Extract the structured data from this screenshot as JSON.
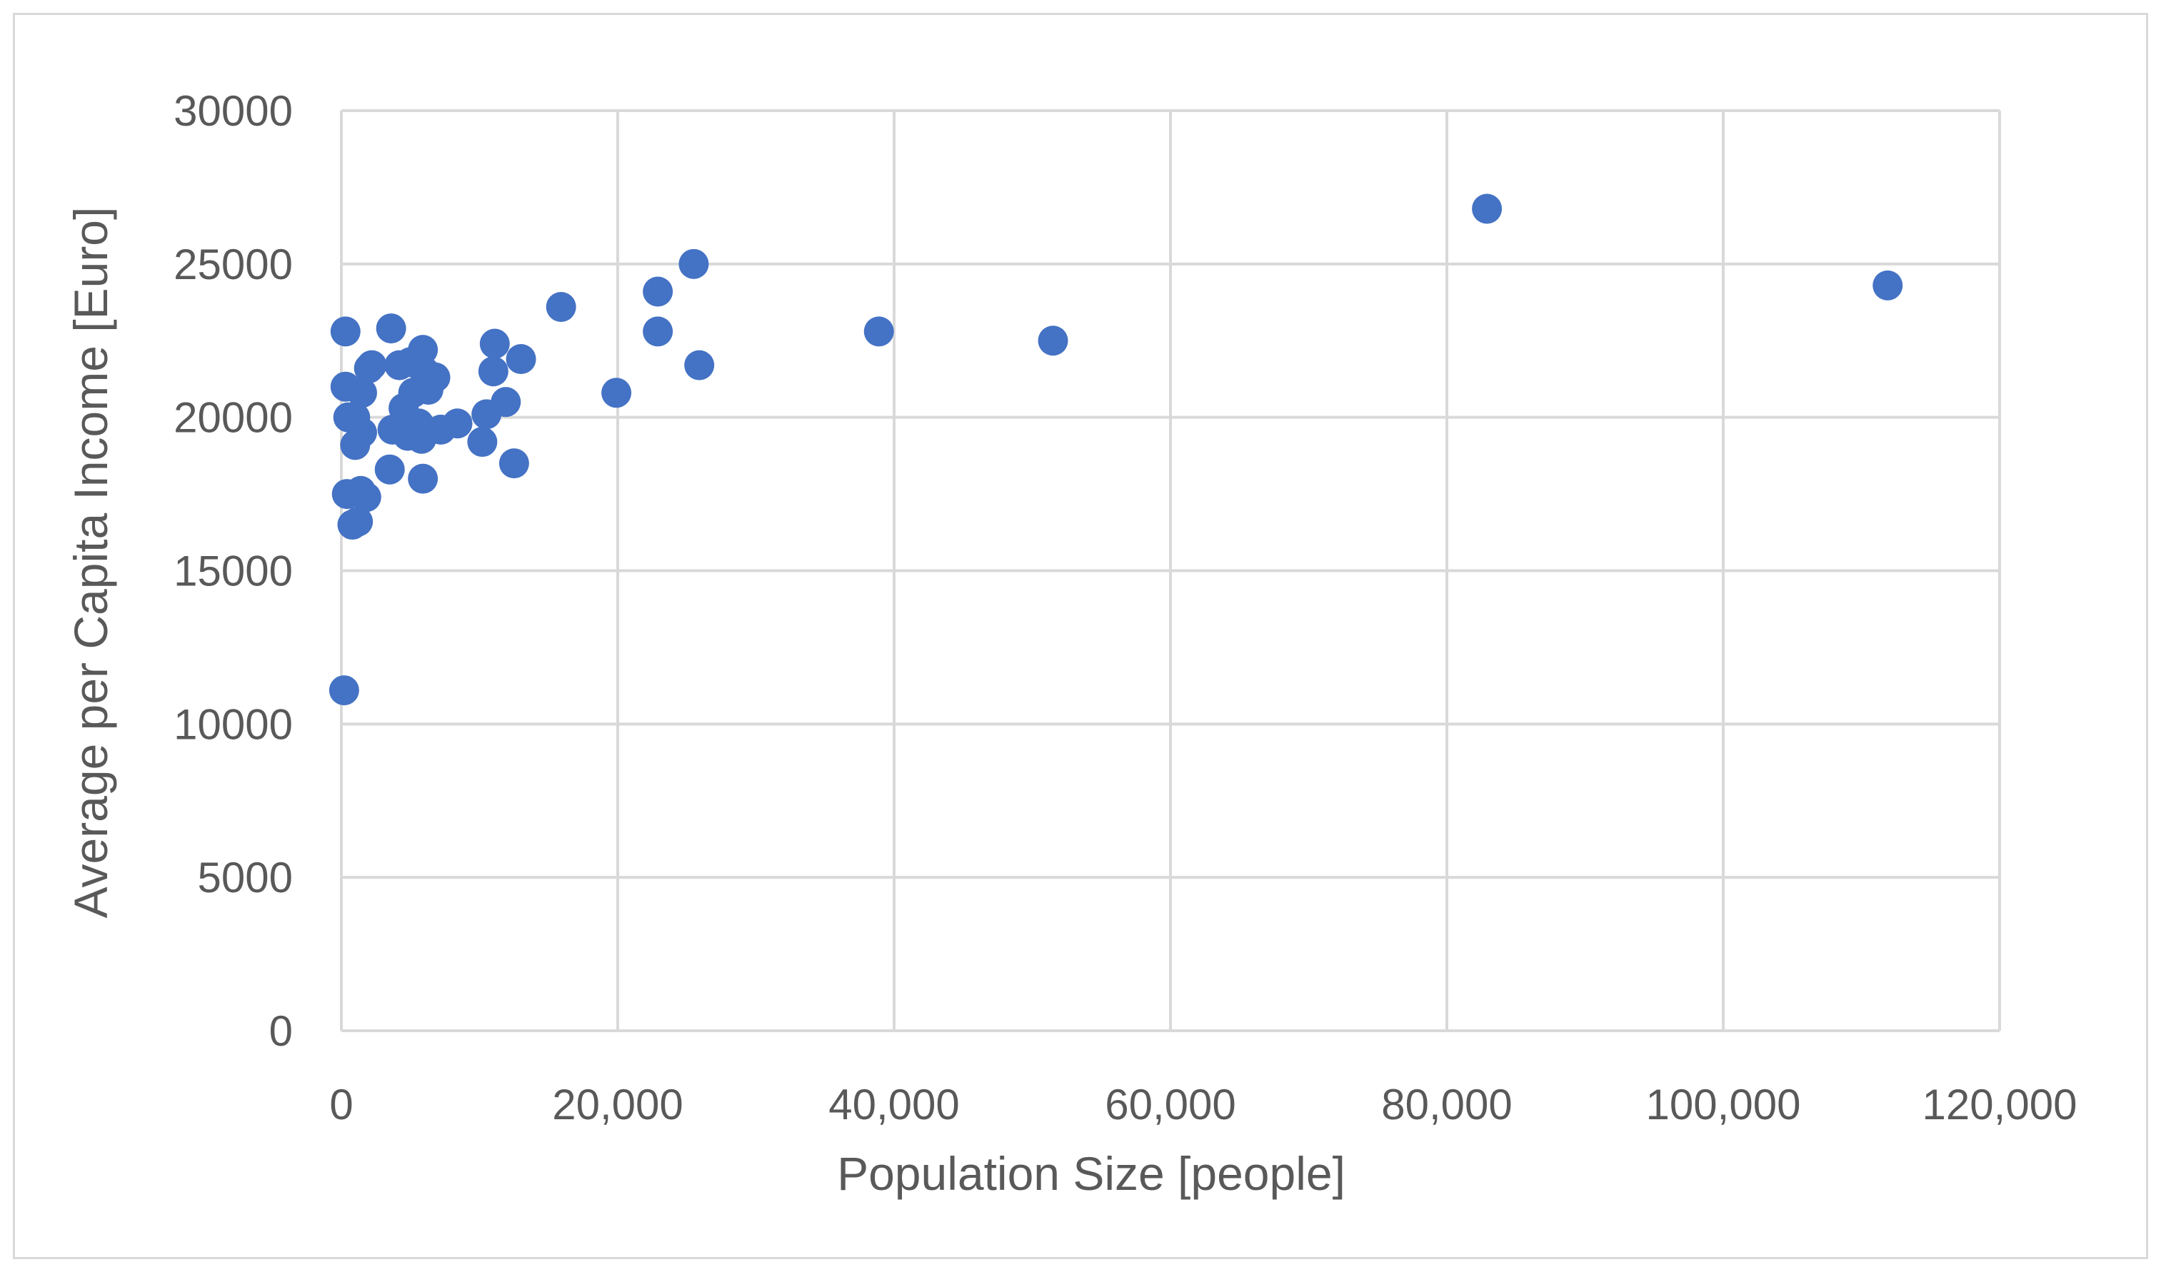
{
  "chart_data": {
    "type": "scatter",
    "xlabel": "Population Size [people]",
    "ylabel": "Average per Capita Income [Euro]",
    "xlim": [
      0,
      120000
    ],
    "ylim": [
      0,
      30000
    ],
    "x_ticks": [
      "0",
      "20,000",
      "40,000",
      "60,000",
      "80,000",
      "100,000",
      "120,000"
    ],
    "y_ticks": [
      "0",
      "5000",
      "10000",
      "15000",
      "20000",
      "25000",
      "30000"
    ],
    "grid": true,
    "marker_color": "#4472C4",
    "points": [
      {
        "x": 300,
        "y": 22800
      },
      {
        "x": 200,
        "y": 11100
      },
      {
        "x": 300,
        "y": 21000
      },
      {
        "x": 500,
        "y": 20000
      },
      {
        "x": 400,
        "y": 17500
      },
      {
        "x": 800,
        "y": 16500
      },
      {
        "x": 1200,
        "y": 16600
      },
      {
        "x": 1000,
        "y": 19100
      },
      {
        "x": 1500,
        "y": 19500
      },
      {
        "x": 1500,
        "y": 20800
      },
      {
        "x": 1400,
        "y": 17600
      },
      {
        "x": 1800,
        "y": 17400
      },
      {
        "x": 2000,
        "y": 21600
      },
      {
        "x": 2200,
        "y": 21700
      },
      {
        "x": 1000,
        "y": 20000
      },
      {
        "x": 3600,
        "y": 22900
      },
      {
        "x": 3500,
        "y": 18300
      },
      {
        "x": 3700,
        "y": 19600
      },
      {
        "x": 4200,
        "y": 21700
      },
      {
        "x": 4500,
        "y": 20300
      },
      {
        "x": 4800,
        "y": 19400
      },
      {
        "x": 5000,
        "y": 21800
      },
      {
        "x": 5200,
        "y": 20800
      },
      {
        "x": 5600,
        "y": 19800
      },
      {
        "x": 5900,
        "y": 22200
      },
      {
        "x": 6000,
        "y": 21500
      },
      {
        "x": 5800,
        "y": 19300
      },
      {
        "x": 5900,
        "y": 18000
      },
      {
        "x": 6300,
        "y": 20900
      },
      {
        "x": 6800,
        "y": 21300
      },
      {
        "x": 7200,
        "y": 19600
      },
      {
        "x": 8400,
        "y": 19800
      },
      {
        "x": 10200,
        "y": 19200
      },
      {
        "x": 10500,
        "y": 20100
      },
      {
        "x": 11000,
        "y": 21500
      },
      {
        "x": 11100,
        "y": 22400
      },
      {
        "x": 11900,
        "y": 20500
      },
      {
        "x": 12500,
        "y": 18500
      },
      {
        "x": 13000,
        "y": 21900
      },
      {
        "x": 15900,
        "y": 23600
      },
      {
        "x": 19900,
        "y": 20800
      },
      {
        "x": 22900,
        "y": 24100
      },
      {
        "x": 22900,
        "y": 22800
      },
      {
        "x": 25500,
        "y": 25000
      },
      {
        "x": 25900,
        "y": 21700
      },
      {
        "x": 38900,
        "y": 22800
      },
      {
        "x": 51500,
        "y": 22500
      },
      {
        "x": 82900,
        "y": 26800
      },
      {
        "x": 111900,
        "y": 24300
      }
    ]
  }
}
